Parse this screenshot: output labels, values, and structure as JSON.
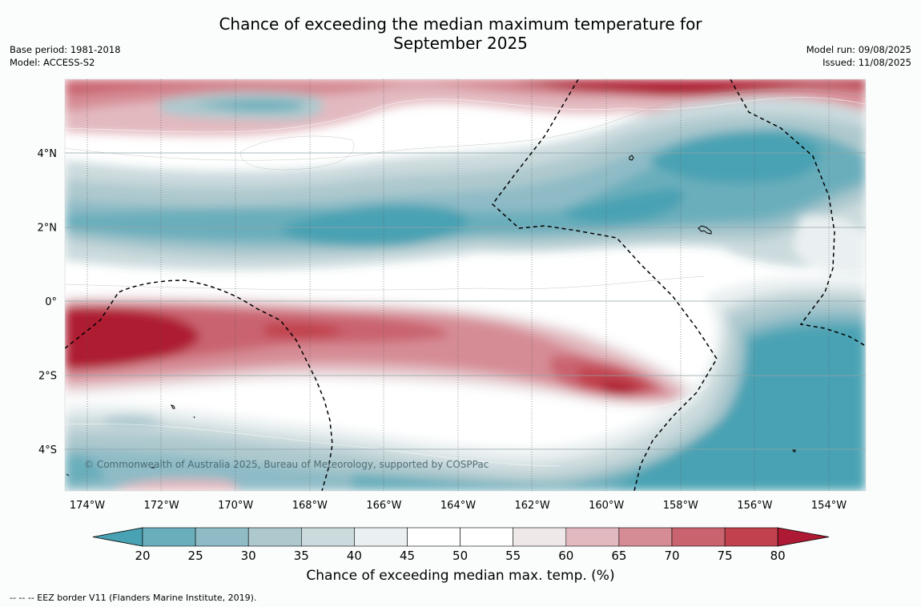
{
  "title_line1": "Chance of exceeding the median maximum temperature for",
  "title_line2": "September 2025",
  "meta_left": {
    "base_period": "Base period: 1981-2018",
    "model": "Model: ACCESS-S2"
  },
  "meta_right": {
    "model_run": "Model run: 09/08/2025",
    "issued": "Issued: 11/08/2025"
  },
  "lon_labels": [
    "174°W",
    "172°W",
    "170°W",
    "168°W",
    "166°W",
    "164°W",
    "162°W",
    "160°W",
    "158°W",
    "156°W",
    "154°W"
  ],
  "lat_labels": [
    "4°N",
    "2°N",
    "0°",
    "2°S",
    "4°S"
  ],
  "copyright": "© Commonwealth of Australia 2025, Bureau of Meteorology, supported by COSPPac",
  "colorbar": {
    "ticks": [
      "20",
      "25",
      "30",
      "35",
      "40",
      "45",
      "50",
      "55",
      "60",
      "65",
      "70",
      "75",
      "80"
    ],
    "colors": [
      "#48a2b3",
      "#6aaebb",
      "#8ebbc6",
      "#adc9ce",
      "#cbdadd",
      "#eaf0f1",
      "#ffffff",
      "#ffffff",
      "#eee8e9",
      "#e2b9bf",
      "#d68c95",
      "#c9646f",
      "#c1424e",
      "#ae1a33"
    ],
    "label": "Chance of exceeding median max. temp. (%)"
  },
  "footnote": "--  --  -- EEZ border V11 (Flanders Marine Institute, 2019)."
}
